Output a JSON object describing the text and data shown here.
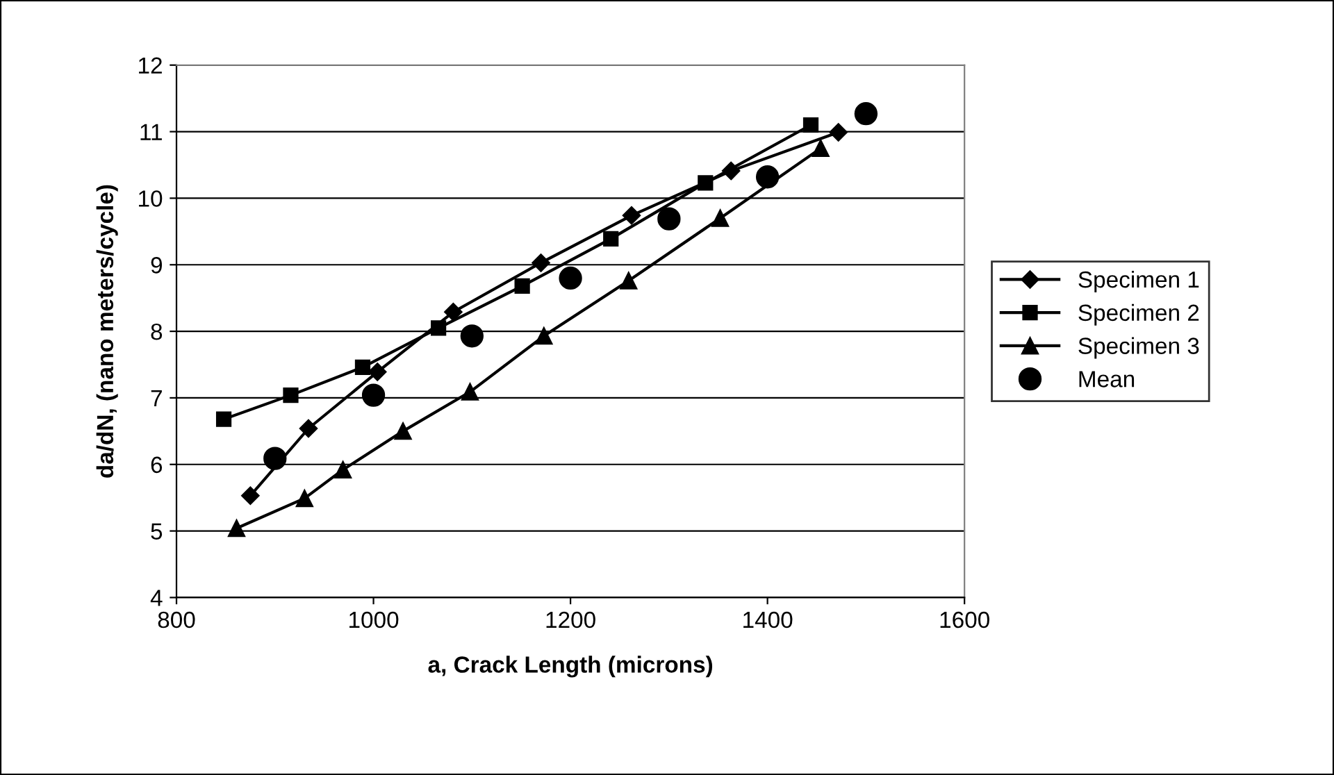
{
  "chart_data": {
    "type": "line",
    "xlabel": "a, Crack Length (microns)",
    "ylabel": "da/dN, (nano meters/cycle)",
    "xlim": [
      800,
      1600
    ],
    "xticks": [
      800,
      1000,
      1200,
      1400,
      1600
    ],
    "ylim": [
      4,
      12
    ],
    "yticks": [
      4,
      5,
      6,
      7,
      8,
      9,
      10,
      11,
      12
    ],
    "grid": "y",
    "legend": "right",
    "series": [
      {
        "name": "Specimen 1",
        "color": "#000000",
        "marker": "diamond",
        "x": [
          875,
          934,
          1004,
          1081,
          1170,
          1262,
          1363,
          1472
        ],
        "values": [
          5.53,
          6.54,
          7.39,
          8.29,
          9.03,
          9.74,
          10.41,
          10.99
        ]
      },
      {
        "name": "Specimen 2",
        "color": "#000000",
        "marker": "square",
        "x": [
          848,
          916,
          989,
          1066,
          1151,
          1241,
          1337,
          1444
        ],
        "values": [
          6.68,
          7.04,
          7.46,
          8.05,
          8.68,
          9.39,
          10.23,
          11.1
        ]
      },
      {
        "name": "Specimen 3",
        "color": "#000000",
        "marker": "triangle",
        "x": [
          861,
          930,
          969,
          1030,
          1098,
          1173,
          1259,
          1352,
          1454
        ],
        "values": [
          5.04,
          5.49,
          5.92,
          6.5,
          7.09,
          7.93,
          8.76,
          9.7,
          10.75
        ]
      },
      {
        "name": "Mean",
        "type": "scatter",
        "color": "#000000",
        "marker": "circle",
        "x": [
          900,
          1000,
          1100,
          1200,
          1300,
          1400,
          1500
        ],
        "values": [
          6.09,
          7.04,
          7.93,
          8.8,
          9.69,
          10.32,
          11.27
        ]
      }
    ]
  }
}
